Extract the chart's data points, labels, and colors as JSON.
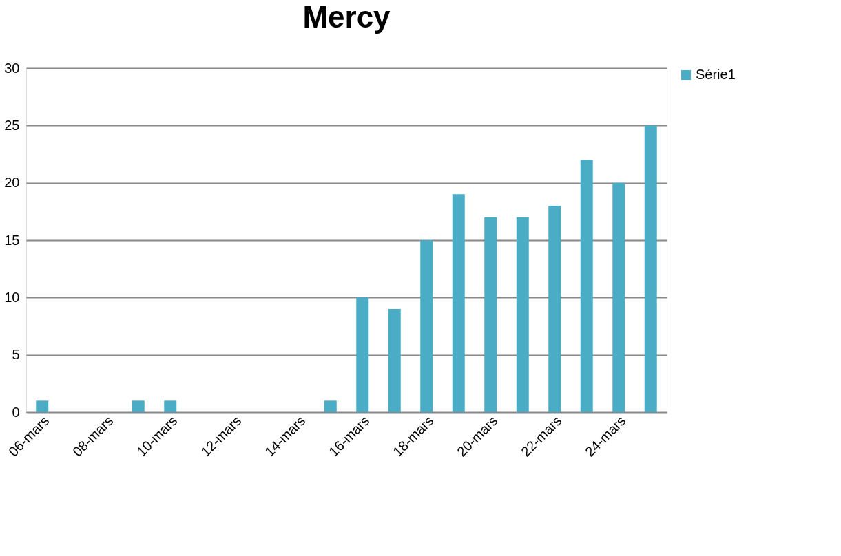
{
  "chart_data": {
    "type": "bar",
    "title": "Mercy",
    "categories": [
      "06-mars",
      null,
      "08-mars",
      null,
      "10-mars",
      null,
      "12-mars",
      null,
      "14-mars",
      null,
      "16-mars",
      null,
      "18-mars",
      null,
      "20-mars",
      null,
      "22-mars",
      null,
      "24-mars",
      null
    ],
    "series": [
      {
        "name": "Série1",
        "color": "#4bacc6",
        "values": [
          1,
          0,
          0,
          1,
          1,
          0,
          0,
          0,
          0,
          1,
          10,
          9,
          15,
          19,
          17,
          17,
          18,
          22,
          20,
          25
        ]
      }
    ],
    "ylim": [
      0,
      30
    ],
    "yticks": [
      0,
      5,
      10,
      15,
      20,
      25,
      30
    ],
    "grid": "y",
    "legend": "right"
  }
}
